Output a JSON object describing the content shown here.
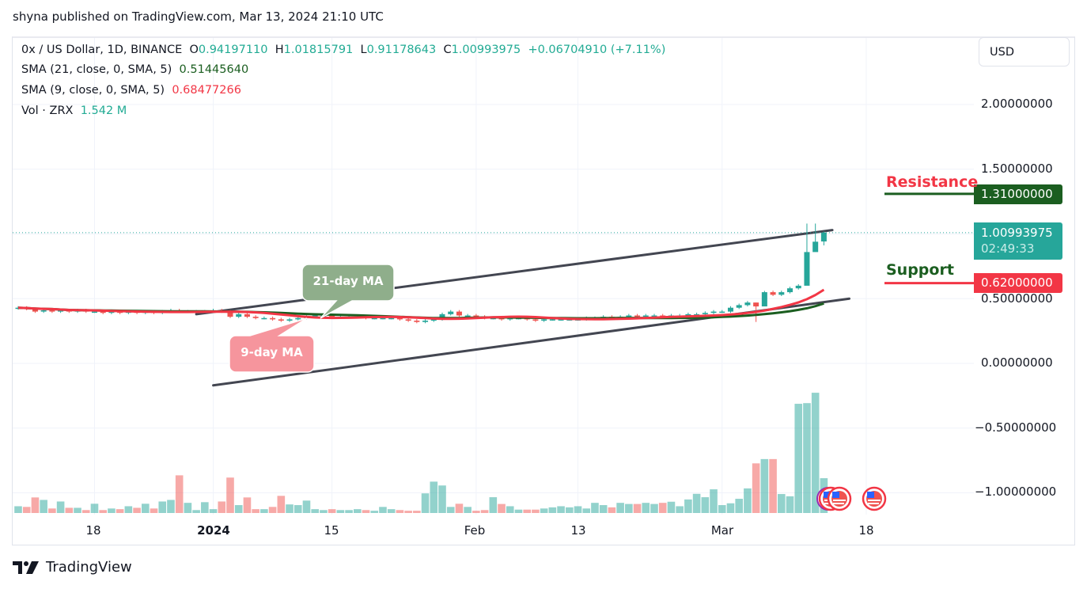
{
  "publisher": "shyna published on TradingView.com, Mar 13, 2024 21:10 UTC",
  "legend": {
    "symbol": "0x / US Dollar, 1D, BINANCE",
    "o_label": "O",
    "o": "0.94197110",
    "h_label": "H",
    "h": "1.01815791",
    "l_label": "L",
    "l": "0.91178643",
    "c_label": "C",
    "c": "1.00993975",
    "change": "+0.06704910 (+7.11%)",
    "sma21_label": "SMA (21, close, 0, SMA, 5)",
    "sma21_value": "0.51445640",
    "sma9_label": "SMA (9, close, 0, SMA, 5)",
    "sma9_value": "0.68477266",
    "vol_label": "Vol · ZRX",
    "vol_value": "1.542 M"
  },
  "currency_button": "USD",
  "footer": {
    "brand": "TradingView"
  },
  "colors": {
    "up": "#26a69a",
    "down": "#ef5350",
    "sma21": "#1b5e20",
    "sma9": "#f23645",
    "trendline": "#434651",
    "resistance_label": "#1b5e20",
    "support_label": "#f23645",
    "current_price": "#26a69a"
  },
  "chart_data": {
    "type": "candlestick",
    "start_date": "2023-12-09",
    "y_ticks": [
      "2.00000000",
      "1.50000000",
      "0.50000000",
      "0.00000000",
      "−0.50000000",
      "−1.00000000"
    ],
    "y_tick_values": [
      2.0,
      1.5,
      0.5,
      0.0,
      -0.5,
      -1.0
    ],
    "x_ticks": [
      {
        "label": "18",
        "date": "2023-12-18"
      },
      {
        "label": "2024",
        "date": "2024-01-01"
      },
      {
        "label": "15",
        "date": "2024-01-15"
      },
      {
        "label": "Feb",
        "date": "2024-02-01"
      },
      {
        "label": "13",
        "date": "2024-02-13"
      },
      {
        "label": "Mar",
        "date": "2024-03-01"
      },
      {
        "label": "18",
        "date": "2024-03-18"
      }
    ],
    "close": [
      0.43,
      0.42,
      0.4,
      0.41,
      0.4,
      0.41,
      0.4,
      0.41,
      0.4,
      0.4,
      0.39,
      0.4,
      0.39,
      0.4,
      0.39,
      0.4,
      0.39,
      0.4,
      0.41,
      0.4,
      0.4,
      0.4,
      0.4,
      0.41,
      0.4,
      0.36,
      0.38,
      0.36,
      0.35,
      0.35,
      0.34,
      0.33,
      0.34,
      0.35,
      0.36,
      0.37,
      0.37,
      0.36,
      0.36,
      0.36,
      0.36,
      0.35,
      0.35,
      0.35,
      0.35,
      0.34,
      0.33,
      0.32,
      0.33,
      0.34,
      0.38,
      0.4,
      0.37,
      0.37,
      0.36,
      0.35,
      0.35,
      0.34,
      0.35,
      0.35,
      0.34,
      0.33,
      0.34,
      0.34,
      0.34,
      0.34,
      0.34,
      0.35,
      0.35,
      0.36,
      0.35,
      0.36,
      0.37,
      0.36,
      0.37,
      0.37,
      0.36,
      0.37,
      0.37,
      0.38,
      0.38,
      0.39,
      0.4,
      0.4,
      0.43,
      0.45,
      0.47,
      0.44,
      0.55,
      0.53,
      0.55,
      0.58,
      0.6,
      0.86,
      0.94,
      1.00993975
    ],
    "last_candle": {
      "open": 0.9419711,
      "high": 1.01815791,
      "low": 0.91178643,
      "close": 1.00993975
    },
    "wicks": {
      "2024-03-05": [
        0.47,
        0.32
      ],
      "2024-03-06": [
        0.56,
        0.53
      ],
      "2024-03-11": [
        1.08,
        0.82
      ],
      "2024-03-12": [
        1.08,
        0.88
      ]
    },
    "volume_millions": [
      0.3,
      0.27,
      0.69,
      0.58,
      0.2,
      0.51,
      0.23,
      0.23,
      0.13,
      0.41,
      0.13,
      0.2,
      0.17,
      0.3,
      0.23,
      0.41,
      0.2,
      0.51,
      0.58,
      1.67,
      0.45,
      0.13,
      0.48,
      0.17,
      0.51,
      1.57,
      0.35,
      0.69,
      0.17,
      0.17,
      0.27,
      0.76,
      0.38,
      0.35,
      0.55,
      0.17,
      0.13,
      0.17,
      0.13,
      0.13,
      0.17,
      0.13,
      0.1,
      0.27,
      0.17,
      0.13,
      0.1,
      0.1,
      0.87,
      1.39,
      1.22,
      0.27,
      0.41,
      0.27,
      0.1,
      0.13,
      0.7,
      0.4,
      0.3,
      0.15,
      0.15,
      0.15,
      0.2,
      0.25,
      0.3,
      0.25,
      0.3,
      0.2,
      0.45,
      0.35,
      0.25,
      0.45,
      0.4,
      0.4,
      0.45,
      0.4,
      0.45,
      0.5,
      0.3,
      0.6,
      0.85,
      0.7,
      1.05,
      0.35,
      0.43,
      0.63,
      1.09,
      2.2,
      2.39,
      2.39,
      0.84,
      0.74,
      4.84,
      4.87,
      5.33,
      1.542
    ],
    "sma": [
      {
        "period": 21,
        "smoothing": 5,
        "color": "#1b5e20"
      },
      {
        "period": 9,
        "smoothing": 5,
        "color": "#f23645"
      }
    ],
    "current_price": {
      "value": "1.00993975",
      "countdown": "02:49:33"
    },
    "horizontal_levels": [
      {
        "label": "Resistance",
        "value": 1.31,
        "value_text": "1.31000000",
        "label_color": "#f23645",
        "line_color": "#1b5e20",
        "box_color": "#1b5e20"
      },
      {
        "label": "Support",
        "value": 0.62,
        "value_text": "0.62000000",
        "label_color": "#1b5e20",
        "line_color": "#f23645",
        "box_color": "#f23645"
      }
    ],
    "trendlines": [
      {
        "from": [
          "2023-12-30",
          0.38
        ],
        "to": [
          "2024-03-14",
          1.03
        ]
      },
      {
        "from": [
          "2024-01-01",
          -0.17
        ],
        "to": [
          "2024-03-16",
          0.5
        ]
      }
    ],
    "callouts": [
      {
        "text": "21-day MA",
        "color": "#8fae8b"
      },
      {
        "text": "9-day MA",
        "color": "#f6959d"
      }
    ]
  }
}
